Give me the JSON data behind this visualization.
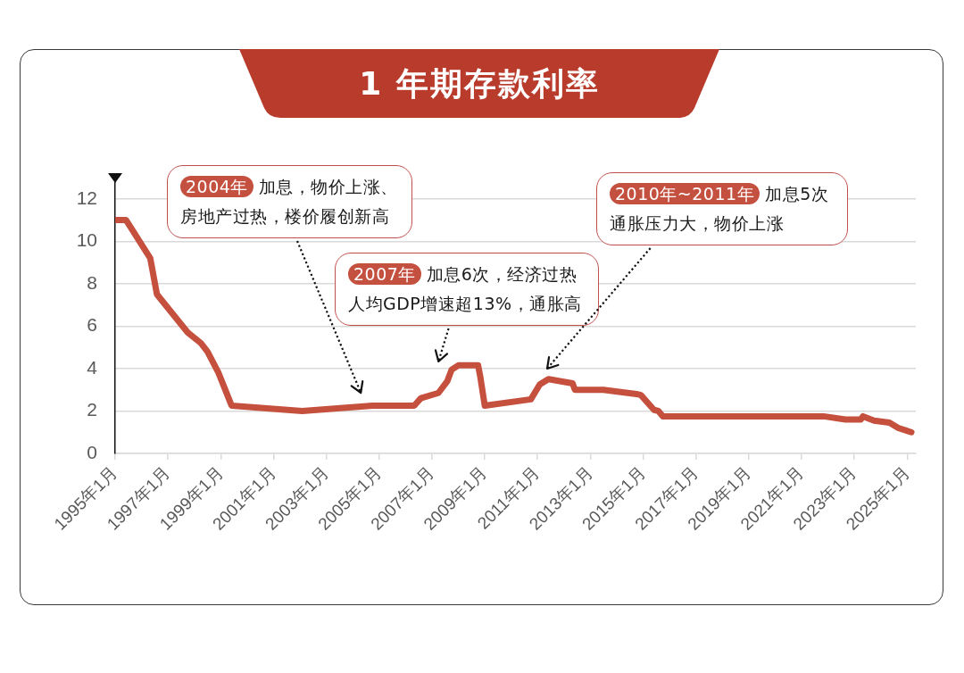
{
  "chart_data": {
    "type": "line",
    "title": "1 年期存款利率",
    "x": [
      "1995-01",
      "1995-06",
      "1996-05",
      "1996-08",
      "1997-10",
      "1998-04",
      "1998-07",
      "1998-12",
      "1999-06",
      "2002-02",
      "2004-10",
      "2006-05",
      "2006-08",
      "2007-04",
      "2007-08",
      "2007-10",
      "2008-01",
      "2008-10",
      "2008-11",
      "2009-01",
      "2010-10",
      "2011-02",
      "2011-06",
      "2012-05",
      "2012-06",
      "2013-07",
      "2014-10",
      "2014-12",
      "2015-06",
      "2015-08",
      "2015-10",
      "2021-11",
      "2022-09",
      "2023-04",
      "2023-05",
      "2023-10",
      "2024-05",
      "2024-09",
      "2025-03"
    ],
    "values": [
      11.0,
      11.0,
      9.2,
      7.5,
      5.7,
      5.2,
      4.8,
      3.8,
      2.25,
      2.0,
      2.25,
      2.25,
      2.6,
      2.85,
      3.4,
      3.95,
      4.15,
      4.15,
      3.6,
      2.25,
      2.55,
      3.25,
      3.5,
      3.3,
      3.0,
      3.0,
      2.8,
      2.75,
      2.05,
      2.0,
      1.75,
      1.75,
      1.6,
      1.6,
      1.75,
      1.55,
      1.45,
      1.2,
      1.0
    ],
    "color": "#c5503e",
    "marker": "none",
    "line_style": "solid",
    "grid": "y",
    "xlim": [
      "1995-01",
      "2025-05"
    ],
    "xticks": [
      {
        "value": "1995-01",
        "label": "1995年1月"
      },
      {
        "value": "1997-01",
        "label": "1997年1月"
      },
      {
        "value": "1999-01",
        "label": "1999年1月"
      },
      {
        "value": "2001-01",
        "label": "2001年1月"
      },
      {
        "value": "2003-01",
        "label": "2003年1月"
      },
      {
        "value": "2005-01",
        "label": "2005年1月"
      },
      {
        "value": "2007-01",
        "label": "2007年1月"
      },
      {
        "value": "2009-01",
        "label": "2009年1月"
      },
      {
        "value": "2011-01",
        "label": "2011年1月"
      },
      {
        "value": "2013-01",
        "label": "2013年1月"
      },
      {
        "value": "2015-01",
        "label": "2015年1月"
      },
      {
        "value": "2017-01",
        "label": "2017年1月"
      },
      {
        "value": "2019-01",
        "label": "2019年1月"
      },
      {
        "value": "2021-01",
        "label": "2021年1月"
      },
      {
        "value": "2023-01",
        "label": "2023年1月"
      },
      {
        "value": "2025-01",
        "label": "2025年1月"
      }
    ],
    "ylim": [
      0,
      13
    ],
    "yticks": [
      0,
      2,
      4,
      6,
      8,
      10,
      12
    ],
    "annotations": [
      "2004年 加息，物价上涨、房地产过热，楼价履创新高",
      "2007年 加息6次，经济过热人均GDP增速超13%，通胀高",
      "2010年~2011年 加息5次通胀压力大，物价上涨"
    ]
  }
}
